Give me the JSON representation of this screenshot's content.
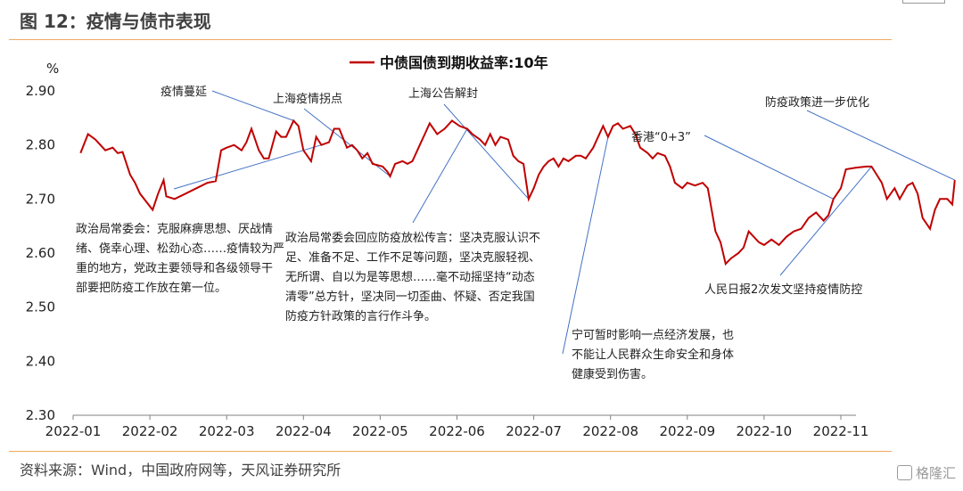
{
  "header": {
    "title": "图 12：疫情与债市表现"
  },
  "footer": {
    "source": "资料来源：Wind，中国政府网等，天风证券研究所",
    "watermark": "格隆汇"
  },
  "chart_data": {
    "type": "line",
    "title": "",
    "ylabel": "%",
    "xlabel": "",
    "ylim": [
      2.3,
      2.9
    ],
    "yticks": [
      "2.30",
      "2.40",
      "2.50",
      "2.60",
      "2.70",
      "2.80",
      "2.90"
    ],
    "xticks": [
      "2022-01",
      "2022-02",
      "2022-03",
      "2022-04",
      "2022-05",
      "2022-06",
      "2022-07",
      "2022-08",
      "2022-09",
      "2022-10",
      "2022-11"
    ],
    "legend": {
      "position": "top-center"
    },
    "series": [
      {
        "name": "中债国债到期收益率:10年",
        "color": "#c00000",
        "points": [
          [
            "2022-01-04",
            2.785
          ],
          [
            "2022-01-07",
            2.82
          ],
          [
            "2022-01-10",
            2.81
          ],
          [
            "2022-01-12",
            2.8
          ],
          [
            "2022-01-14",
            2.79
          ],
          [
            "2022-01-17",
            2.795
          ],
          [
            "2022-01-19",
            2.785
          ],
          [
            "2022-01-21",
            2.787
          ],
          [
            "2022-01-24",
            2.745
          ],
          [
            "2022-01-26",
            2.73
          ],
          [
            "2022-01-28",
            2.71
          ],
          [
            "2022-02-02",
            2.68
          ],
          [
            "2022-02-04",
            2.71
          ],
          [
            "2022-02-06",
            2.735
          ],
          [
            "2022-02-07",
            2.705
          ],
          [
            "2022-02-10",
            2.7
          ],
          [
            "2022-02-14",
            2.71
          ],
          [
            "2022-02-18",
            2.72
          ],
          [
            "2022-02-22",
            2.73
          ],
          [
            "2022-02-25",
            2.733
          ],
          [
            "2022-02-27",
            2.79
          ],
          [
            "2022-03-01",
            2.795
          ],
          [
            "2022-03-04",
            2.8
          ],
          [
            "2022-03-07",
            2.79
          ],
          [
            "2022-03-09",
            2.805
          ],
          [
            "2022-03-11",
            2.83
          ],
          [
            "2022-03-14",
            2.79
          ],
          [
            "2022-03-16",
            2.775
          ],
          [
            "2022-03-18",
            2.775
          ],
          [
            "2022-03-21",
            2.825
          ],
          [
            "2022-03-23",
            2.815
          ],
          [
            "2022-03-25",
            2.815
          ],
          [
            "2022-03-28",
            2.845
          ],
          [
            "2022-03-30",
            2.835
          ],
          [
            "2022-04-01",
            2.79
          ],
          [
            "2022-04-04",
            2.77
          ],
          [
            "2022-04-06",
            2.815
          ],
          [
            "2022-04-08",
            2.8
          ],
          [
            "2022-04-11",
            2.805
          ],
          [
            "2022-04-13",
            2.83
          ],
          [
            "2022-04-15",
            2.83
          ],
          [
            "2022-04-18",
            2.795
          ],
          [
            "2022-04-20",
            2.8
          ],
          [
            "2022-04-22",
            2.79
          ],
          [
            "2022-04-24",
            2.775
          ],
          [
            "2022-04-26",
            2.785
          ],
          [
            "2022-04-28",
            2.765
          ],
          [
            "2022-05-02",
            2.76
          ],
          [
            "2022-05-04",
            2.75
          ],
          [
            "2022-05-05",
            2.742
          ],
          [
            "2022-05-07",
            2.765
          ],
          [
            "2022-05-10",
            2.77
          ],
          [
            "2022-05-12",
            2.765
          ],
          [
            "2022-05-14",
            2.77
          ],
          [
            "2022-05-17",
            2.8
          ],
          [
            "2022-05-19",
            2.82
          ],
          [
            "2022-05-21",
            2.84
          ],
          [
            "2022-05-24",
            2.82
          ],
          [
            "2022-05-27",
            2.83
          ],
          [
            "2022-05-30",
            2.845
          ],
          [
            "2022-06-02",
            2.835
          ],
          [
            "2022-06-05",
            2.83
          ],
          [
            "2022-06-07",
            2.82
          ],
          [
            "2022-06-10",
            2.81
          ],
          [
            "2022-06-12",
            2.8
          ],
          [
            "2022-06-14",
            2.82
          ],
          [
            "2022-06-16",
            2.8
          ],
          [
            "2022-06-18",
            2.815
          ],
          [
            "2022-06-21",
            2.81
          ],
          [
            "2022-06-23",
            2.78
          ],
          [
            "2022-06-25",
            2.77
          ],
          [
            "2022-06-27",
            2.765
          ],
          [
            "2022-06-29",
            2.7
          ],
          [
            "2022-07-01",
            2.72
          ],
          [
            "2022-07-03",
            2.745
          ],
          [
            "2022-07-05",
            2.76
          ],
          [
            "2022-07-07",
            2.77
          ],
          [
            "2022-07-09",
            2.775
          ],
          [
            "2022-07-11",
            2.76
          ],
          [
            "2022-07-13",
            2.775
          ],
          [
            "2022-07-15",
            2.77
          ],
          [
            "2022-07-18",
            2.78
          ],
          [
            "2022-07-20",
            2.78
          ],
          [
            "2022-07-22",
            2.775
          ],
          [
            "2022-07-25",
            2.795
          ],
          [
            "2022-07-27",
            2.815
          ],
          [
            "2022-07-29",
            2.835
          ],
          [
            "2022-07-31",
            2.815
          ],
          [
            "2022-08-02",
            2.835
          ],
          [
            "2022-08-04",
            2.84
          ],
          [
            "2022-08-06",
            2.83
          ],
          [
            "2022-08-09",
            2.835
          ],
          [
            "2022-08-11",
            2.82
          ],
          [
            "2022-08-13",
            2.795
          ],
          [
            "2022-08-16",
            2.785
          ],
          [
            "2022-08-18",
            2.775
          ],
          [
            "2022-08-20",
            2.785
          ],
          [
            "2022-08-23",
            2.78
          ],
          [
            "2022-08-25",
            2.76
          ],
          [
            "2022-08-27",
            2.73
          ],
          [
            "2022-08-30",
            2.72
          ],
          [
            "2022-09-01",
            2.73
          ],
          [
            "2022-09-04",
            2.725
          ],
          [
            "2022-09-07",
            2.73
          ],
          [
            "2022-09-09",
            2.72
          ],
          [
            "2022-09-12",
            2.64
          ],
          [
            "2022-09-14",
            2.62
          ],
          [
            "2022-09-16",
            2.58
          ],
          [
            "2022-09-18",
            2.59
          ],
          [
            "2022-09-21",
            2.6
          ],
          [
            "2022-09-23",
            2.61
          ],
          [
            "2022-09-25",
            2.64
          ],
          [
            "2022-09-27",
            2.63
          ],
          [
            "2022-09-29",
            2.62
          ],
          [
            "2022-10-01",
            2.615
          ],
          [
            "2022-10-04",
            2.625
          ],
          [
            "2022-10-07",
            2.615
          ],
          [
            "2022-10-10",
            2.63
          ],
          [
            "2022-10-13",
            2.64
          ],
          [
            "2022-10-16",
            2.645
          ],
          [
            "2022-10-19",
            2.665
          ],
          [
            "2022-10-22",
            2.675
          ],
          [
            "2022-10-25",
            2.66
          ],
          [
            "2022-10-27",
            2.67
          ],
          [
            "2022-10-29",
            2.7
          ],
          [
            "2022-11-01",
            2.72
          ],
          [
            "2022-11-03",
            2.755
          ],
          [
            "2022-11-07",
            2.758
          ],
          [
            "2022-11-11",
            2.76
          ],
          [
            "2022-11-13",
            2.76
          ],
          [
            "2022-11-15",
            2.745
          ],
          [
            "2022-11-17",
            2.73
          ],
          [
            "2022-11-19",
            2.7
          ],
          [
            "2022-11-22",
            2.72
          ],
          [
            "2022-11-24",
            2.7
          ],
          [
            "2022-11-27",
            2.725
          ],
          [
            "2022-11-29",
            2.73
          ],
          [
            "2022-12-01",
            2.71
          ],
          [
            "2022-12-03",
            2.665
          ],
          [
            "2022-12-06",
            2.645
          ],
          [
            "2022-12-08",
            2.68
          ],
          [
            "2022-12-10",
            2.7
          ],
          [
            "2022-12-13",
            2.7
          ],
          [
            "2022-12-15",
            2.69
          ],
          [
            "2022-12-16",
            2.735
          ]
        ]
      }
    ],
    "annotations": [
      {
        "text": "疫情蔓延",
        "date": "2022-03-28",
        "value": 2.845
      },
      {
        "text": "上海疫情拐点",
        "date": "2022-05-05",
        "value": 2.742
      },
      {
        "text": "上海公告解封",
        "date": "2022-06-29",
        "value": 2.7
      },
      {
        "text": "防疫政策进一步优化",
        "date": "2022-12-16",
        "value": 2.735
      },
      {
        "text": "香港“0+3”",
        "date": "2022-10-29",
        "value": 2.7
      },
      {
        "text": "人民日报2次发文坚持疫情防控",
        "date": "2022-11-13",
        "value": 2.76
      },
      {
        "lines": [
          "政治局常委会：克服麻痹思想、厌战情",
          "绪、侥幸心理、松劲心态……疫情较为严",
          "重的地方，党政主要领导和各级领导干",
          "部要把防疫工作放在第一位。"
        ],
        "date": "2022-04-08",
        "value": 2.8
      },
      {
        "lines": [
          "政治局常委会回应防疫放松传言：坚决克服认识不",
          "足、准备不足、工作不足等问题，坚决克服轻视、",
          "无所谓、自以为是等思想……毫不动摇坚持“动态",
          "清零”总方针，坚决同一切歪曲、怀疑、否定我国",
          "防疫方针政策的言行作斗争。"
        ],
        "date": "2022-06-05",
        "value": 2.83
      },
      {
        "lines": [
          "宁可暂时影响一点经济发展，也",
          "不能让人民群众生命安全和身体",
          "健康受到伤害。"
        ],
        "date": "2022-07-31",
        "value": 2.815
      }
    ]
  }
}
